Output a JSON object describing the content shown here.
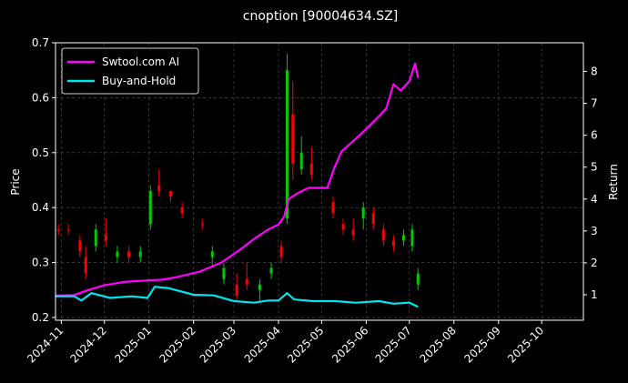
{
  "chart_data": {
    "type": "line",
    "title": "cnoption [90004634.SZ]",
    "ylabel_left": "Price",
    "ylabel_right": "Return",
    "xlim": [
      "2024-10-28",
      "2025-10-30"
    ],
    "ylim_left": [
      0.195,
      0.7
    ],
    "ylim_right": [
      0.2,
      8.9
    ],
    "x_ticks": [
      "2024-11",
      "2024-12",
      "2025-01",
      "2025-02",
      "2025-03",
      "2025-04",
      "2025-05",
      "2025-06",
      "2025-07",
      "2025-08",
      "2025-09",
      "2025-10"
    ],
    "y_ticks_left": [
      "0.2",
      "0.3",
      "0.4",
      "0.5",
      "0.6",
      "0.7"
    ],
    "y_ticks_right": [
      "1",
      "2",
      "3",
      "4",
      "5",
      "6",
      "7",
      "8"
    ],
    "grid": true,
    "legend_position": "top-left",
    "colors": {
      "background": "#000000",
      "ai": "#ff00ff",
      "hold": "#00e5ee",
      "up": "#00cc00",
      "down": "#ff0000",
      "grid": "#555555",
      "text": "#ffffff"
    },
    "series": [
      {
        "name": "Swtool.com AI",
        "axis": "right",
        "points": [
          [
            "2024-10-28",
            0.97
          ],
          [
            "2024-11-10",
            0.99
          ],
          [
            "2024-11-20",
            1.15
          ],
          [
            "2024-12-01",
            1.3
          ],
          [
            "2024-12-15",
            1.4
          ],
          [
            "2024-12-31",
            1.45
          ],
          [
            "2025-01-10",
            1.47
          ],
          [
            "2025-01-20",
            1.55
          ],
          [
            "2025-02-05",
            1.72
          ],
          [
            "2025-02-20",
            2.0
          ],
          [
            "2025-03-05",
            2.4
          ],
          [
            "2025-03-15",
            2.75
          ],
          [
            "2025-03-25",
            3.05
          ],
          [
            "2025-04-01",
            3.2
          ],
          [
            "2025-04-05",
            3.45
          ],
          [
            "2025-04-08",
            4.0
          ],
          [
            "2025-04-15",
            4.2
          ],
          [
            "2025-04-22",
            4.35
          ],
          [
            "2025-05-05",
            4.35
          ],
          [
            "2025-05-10",
            5.0
          ],
          [
            "2025-05-15",
            5.5
          ],
          [
            "2025-05-25",
            5.9
          ],
          [
            "2025-06-01",
            6.2
          ],
          [
            "2025-06-10",
            6.6
          ],
          [
            "2025-06-15",
            6.85
          ],
          [
            "2025-06-20",
            7.6
          ],
          [
            "2025-06-25",
            7.4
          ],
          [
            "2025-07-01",
            7.7
          ],
          [
            "2025-07-05",
            8.25
          ],
          [
            "2025-07-07",
            7.8
          ]
        ]
      },
      {
        "name": "Buy-and-Hold",
        "axis": "right",
        "points": [
          [
            "2024-10-28",
            0.95
          ],
          [
            "2024-11-10",
            0.95
          ],
          [
            "2024-11-15",
            0.82
          ],
          [
            "2024-11-22",
            1.05
          ],
          [
            "2024-12-05",
            0.9
          ],
          [
            "2024-12-20",
            0.95
          ],
          [
            "2024-12-31",
            0.9
          ],
          [
            "2025-01-05",
            1.25
          ],
          [
            "2025-01-15",
            1.2
          ],
          [
            "2025-02-01",
            1.0
          ],
          [
            "2025-02-15",
            0.98
          ],
          [
            "2025-03-01",
            0.8
          ],
          [
            "2025-03-15",
            0.75
          ],
          [
            "2025-03-25",
            0.82
          ],
          [
            "2025-04-01",
            0.82
          ],
          [
            "2025-04-07",
            1.05
          ],
          [
            "2025-04-12",
            0.85
          ],
          [
            "2025-04-25",
            0.8
          ],
          [
            "2025-05-10",
            0.8
          ],
          [
            "2025-05-25",
            0.75
          ],
          [
            "2025-06-10",
            0.8
          ],
          [
            "2025-06-20",
            0.72
          ],
          [
            "2025-07-01",
            0.75
          ],
          [
            "2025-07-07",
            0.62
          ]
        ]
      }
    ],
    "candles": [
      [
        "2024-10-30",
        0.36,
        0.37,
        0.35,
        0.36,
        "down"
      ],
      [
        "2024-11-06",
        0.36,
        0.37,
        0.35,
        0.36,
        "down"
      ],
      [
        "2024-11-14",
        0.34,
        0.35,
        0.31,
        0.32,
        "down"
      ],
      [
        "2024-11-18",
        0.31,
        0.33,
        0.27,
        0.28,
        "down"
      ],
      [
        "2024-11-25",
        0.33,
        0.37,
        0.32,
        0.36,
        "up"
      ],
      [
        "2024-12-02",
        0.35,
        0.38,
        0.33,
        0.34,
        "down"
      ],
      [
        "2024-12-10",
        0.31,
        0.33,
        0.3,
        0.32,
        "up"
      ],
      [
        "2024-12-18",
        0.32,
        0.33,
        0.3,
        0.31,
        "down"
      ],
      [
        "2024-12-26",
        0.31,
        0.33,
        0.3,
        0.32,
        "up"
      ],
      [
        "2025-01-02",
        0.37,
        0.44,
        0.36,
        0.43,
        "up"
      ],
      [
        "2025-01-08",
        0.43,
        0.47,
        0.42,
        0.44,
        "down"
      ],
      [
        "2025-01-16",
        0.43,
        0.43,
        0.41,
        0.42,
        "down"
      ],
      [
        "2025-01-24",
        0.4,
        0.41,
        0.38,
        0.39,
        "down"
      ],
      [
        "2025-02-07",
        0.37,
        0.38,
        0.36,
        0.37,
        "down"
      ],
      [
        "2025-02-14",
        0.32,
        0.33,
        0.29,
        0.31,
        "up"
      ],
      [
        "2025-02-22",
        0.29,
        0.3,
        0.26,
        0.27,
        "up"
      ],
      [
        "2025-03-03",
        0.26,
        0.28,
        0.23,
        0.24,
        "down"
      ],
      [
        "2025-03-10",
        0.27,
        0.3,
        0.25,
        0.26,
        "down"
      ],
      [
        "2025-03-19",
        0.25,
        0.27,
        0.23,
        0.26,
        "up"
      ],
      [
        "2025-03-27",
        0.28,
        0.3,
        0.27,
        0.29,
        "up"
      ],
      [
        "2025-04-03",
        0.33,
        0.34,
        0.3,
        0.31,
        "down"
      ],
      [
        "2025-04-07",
        0.38,
        0.68,
        0.37,
        0.65,
        "up"
      ],
      [
        "2025-04-11",
        0.57,
        0.63,
        0.45,
        0.48,
        "down"
      ],
      [
        "2025-04-17",
        0.5,
        0.53,
        0.46,
        0.47,
        "up"
      ],
      [
        "2025-04-24",
        0.48,
        0.51,
        0.45,
        0.46,
        "down"
      ],
      [
        "2025-05-09",
        0.41,
        0.42,
        0.38,
        0.39,
        "down"
      ],
      [
        "2025-05-16",
        0.37,
        0.38,
        0.35,
        0.36,
        "down"
      ],
      [
        "2025-05-23",
        0.36,
        0.38,
        0.34,
        0.35,
        "down"
      ],
      [
        "2025-05-30",
        0.38,
        0.41,
        0.36,
        0.4,
        "up"
      ],
      [
        "2025-06-06",
        0.39,
        0.4,
        0.36,
        0.37,
        "down"
      ],
      [
        "2025-06-13",
        0.36,
        0.37,
        0.33,
        0.34,
        "down"
      ],
      [
        "2025-06-20",
        0.34,
        0.35,
        0.32,
        0.33,
        "down"
      ],
      [
        "2025-06-27",
        0.35,
        0.36,
        0.33,
        0.34,
        "up"
      ],
      [
        "2025-07-03",
        0.33,
        0.37,
        0.32,
        0.36,
        "up"
      ],
      [
        "2025-07-07",
        0.26,
        0.29,
        0.25,
        0.28,
        "up"
      ]
    ]
  }
}
